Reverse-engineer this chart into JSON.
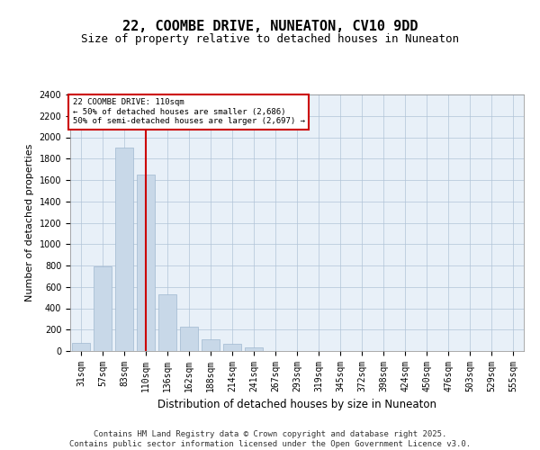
{
  "title": "22, COOMBE DRIVE, NUNEATON, CV10 9DD",
  "subtitle": "Size of property relative to detached houses in Nuneaton",
  "xlabel": "Distribution of detached houses by size in Nuneaton",
  "ylabel": "Number of detached properties",
  "categories": [
    "31sqm",
    "57sqm",
    "83sqm",
    "110sqm",
    "136sqm",
    "162sqm",
    "188sqm",
    "214sqm",
    "241sqm",
    "267sqm",
    "293sqm",
    "319sqm",
    "345sqm",
    "372sqm",
    "398sqm",
    "424sqm",
    "450sqm",
    "476sqm",
    "503sqm",
    "529sqm",
    "555sqm"
  ],
  "values": [
    80,
    790,
    1900,
    1650,
    530,
    230,
    110,
    65,
    35,
    0,
    0,
    0,
    0,
    0,
    0,
    0,
    0,
    0,
    0,
    0,
    0
  ],
  "bar_color": "#c8d8e8",
  "bar_edge_color": "#a0b8d0",
  "vline_index": 3,
  "vline_color": "#cc0000",
  "annotation_title": "22 COOMBE DRIVE: 110sqm",
  "annotation_line1": "← 50% of detached houses are smaller (2,686)",
  "annotation_line2": "50% of semi-detached houses are larger (2,697) →",
  "annotation_box_edgecolor": "#cc0000",
  "ylim": [
    0,
    2400
  ],
  "yticks": [
    0,
    200,
    400,
    600,
    800,
    1000,
    1200,
    1400,
    1600,
    1800,
    2000,
    2200,
    2400
  ],
  "grid_color": "#b0c4d8",
  "plot_bg_color": "#e8f0f8",
  "footer_line1": "Contains HM Land Registry data © Crown copyright and database right 2025.",
  "footer_line2": "Contains public sector information licensed under the Open Government Licence v3.0.",
  "title_fontsize": 11,
  "subtitle_fontsize": 9,
  "label_fontsize": 8,
  "tick_fontsize": 7,
  "footer_fontsize": 6.5
}
